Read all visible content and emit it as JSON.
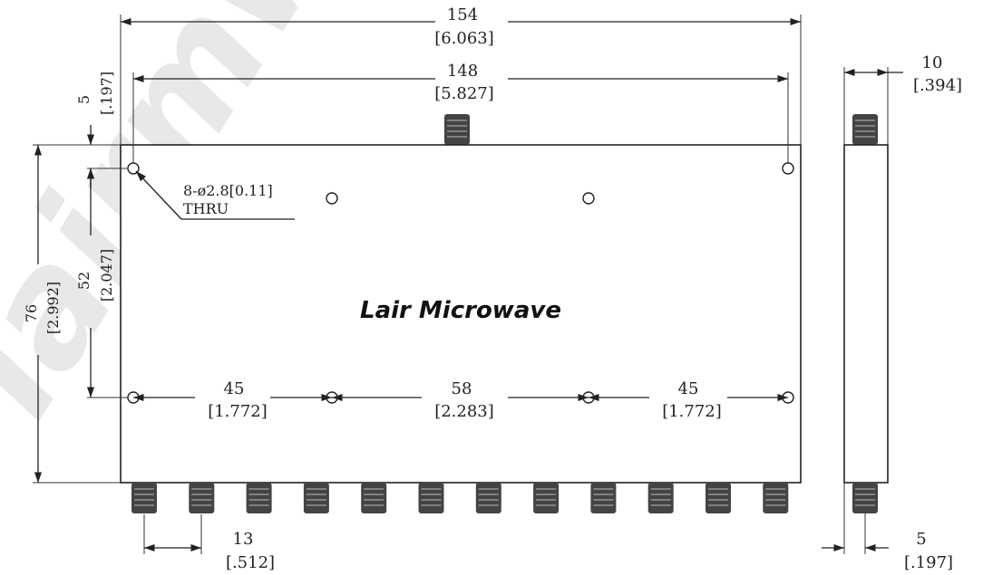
{
  "watermark": "lairmw.c",
  "logo": "Lair Microwave",
  "hole_note": {
    "line1": "8-ø2.8[0.11]",
    "line2": "THRU"
  },
  "dimensions": {
    "overall_length": {
      "mm": "154",
      "in": "[6.063]"
    },
    "hole_spacing_length": {
      "mm": "148",
      "in": "[5.827]"
    },
    "top_offset": {
      "mm": "5",
      "in": "[.197]"
    },
    "overall_height": {
      "mm": "76",
      "in": "[2.992]"
    },
    "hole_spacing_height": {
      "mm": "52",
      "in": "[2.047]"
    },
    "bottom_gap_left": {
      "mm": "45",
      "in": "[1.772]"
    },
    "bottom_gap_center": {
      "mm": "58",
      "in": "[2.283]"
    },
    "bottom_gap_right": {
      "mm": "45",
      "in": "[1.772]"
    },
    "connector_pitch": {
      "mm": "13",
      "in": "[.512]"
    },
    "side_thickness": {
      "mm": "10",
      "in": "[.394]"
    },
    "side_connector_offset": {
      "mm": "5",
      "in": "[.197]"
    }
  },
  "output_connector_count": 12
}
